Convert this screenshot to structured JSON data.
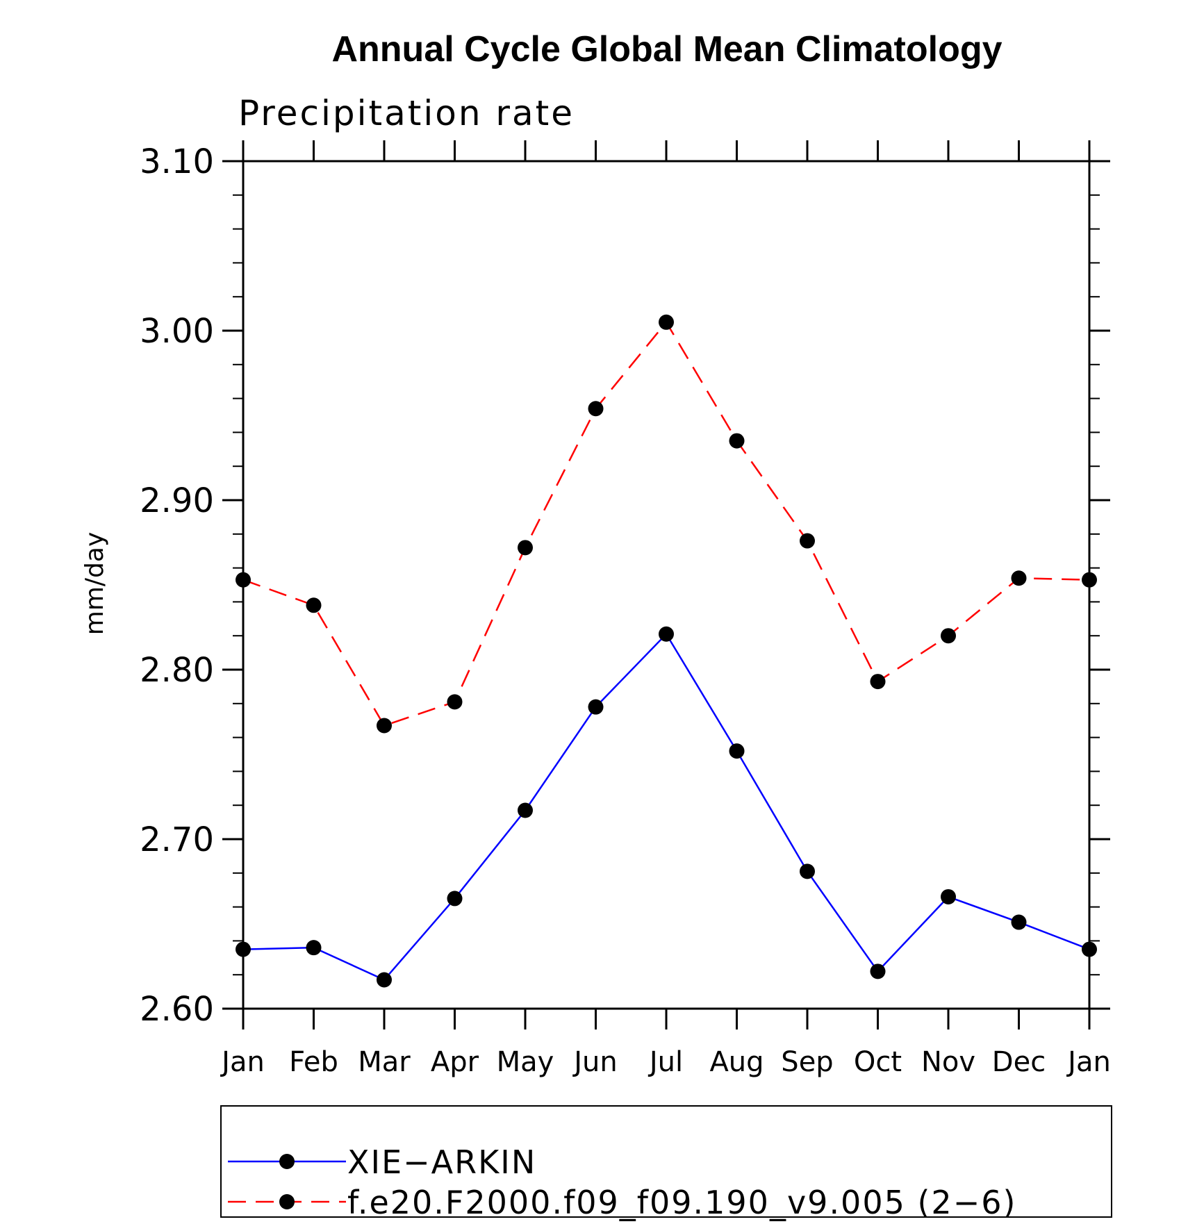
{
  "chart_data": {
    "type": "line",
    "title": "Annual Cycle Global Mean Climatology",
    "subtitle": "Precipitation rate",
    "xlabel": "",
    "ylabel": "mm/day",
    "categories": [
      "Jan",
      "Feb",
      "Mar",
      "Apr",
      "May",
      "Jun",
      "Jul",
      "Aug",
      "Sep",
      "Oct",
      "Nov",
      "Dec",
      "Jan"
    ],
    "ylim": [
      2.6,
      3.1
    ],
    "yticks": [
      "2.60",
      "2.70",
      "2.80",
      "2.90",
      "3.00",
      "3.10"
    ],
    "grid": false,
    "legend_position": "bottom",
    "series": [
      {
        "name": "XIE−ARKIN",
        "color": "#0000ff",
        "dash": "solid",
        "marker": "circle",
        "values": [
          2.635,
          2.636,
          2.617,
          2.665,
          2.717,
          2.778,
          2.821,
          2.752,
          2.681,
          2.622,
          2.666,
          2.651,
          2.635
        ]
      },
      {
        "name": "f.e20.F2000.f09_f09.190_v9.005 (2−6)",
        "color": "#ff0000",
        "dash": "dashed",
        "marker": "circle",
        "values": [
          2.853,
          2.838,
          2.767,
          2.781,
          2.872,
          2.954,
          3.005,
          2.935,
          2.876,
          2.793,
          2.82,
          2.854,
          2.853
        ]
      }
    ]
  }
}
